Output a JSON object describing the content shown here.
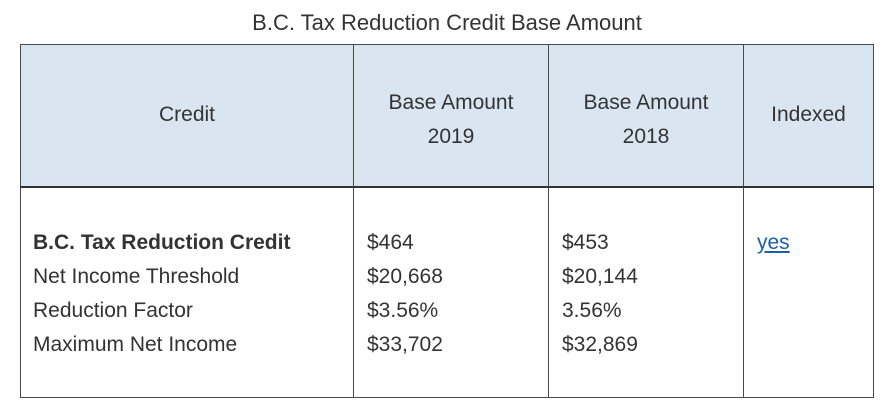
{
  "caption": "B.C. Tax Reduction Credit Base Amount",
  "table": {
    "headers": {
      "credit": "Credit",
      "base_2019_line1": "Base Amount",
      "base_2019_line2": "2019",
      "base_2018_line1": "Base Amount",
      "base_2018_line2": "2018",
      "indexed": "Indexed"
    },
    "rows": [
      {
        "label": "B.C. Tax Reduction Credit",
        "y2019": "$464",
        "y2018": "$453",
        "indexed": "yes"
      },
      {
        "label": "Net Income Threshold",
        "y2019": "$20,668",
        "y2018": "$20,144"
      },
      {
        "label": "Reduction Factor",
        "y2019": "$3.56%",
        "y2018": "3.56%"
      },
      {
        "label": "Maximum Net Income",
        "y2019": "$33,702",
        "y2018": "$32,869"
      }
    ]
  },
  "colors": {
    "header_background": "#d9e6f1",
    "border": "#4a4a4a",
    "text": "#333333",
    "link": "#1f5fa6"
  }
}
